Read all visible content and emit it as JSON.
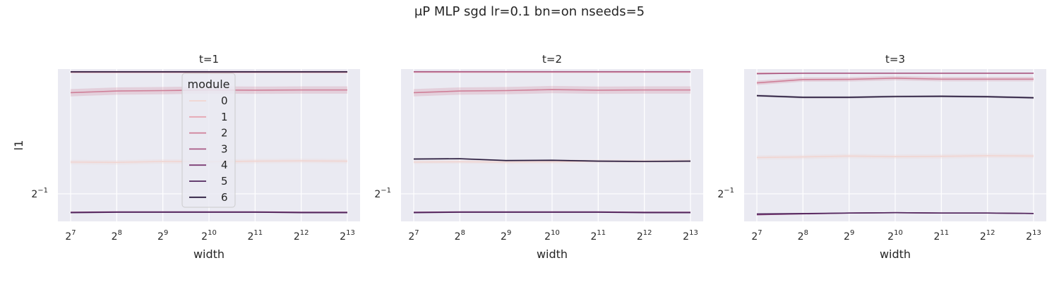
{
  "figure": {
    "suptitle": "μP MLP sgd lr=0.1 bn=on nseeds=5"
  },
  "chart_data": {
    "type": "line",
    "xlabel": "width",
    "ylabel": "l1",
    "x_scale": "log2",
    "y_scale": "log2",
    "x": [
      128,
      256,
      512,
      1024,
      2048,
      4096,
      8192
    ],
    "x_tick_labels": [
      {
        "base": "2",
        "exp": "7"
      },
      {
        "base": "2",
        "exp": "8"
      },
      {
        "base": "2",
        "exp": "9"
      },
      {
        "base": "2",
        "exp": "10"
      },
      {
        "base": "2",
        "exp": "11"
      },
      {
        "base": "2",
        "exp": "12"
      },
      {
        "base": "2",
        "exp": "13"
      }
    ],
    "y_tick_labels": [
      {
        "base": "2",
        "exp": "−1",
        "value": 0.5
      }
    ],
    "ylim": [
      0.43,
      0.99
    ],
    "grid": true,
    "legend": {
      "title": "module",
      "placement": "upper-left (first panel)",
      "entries": [
        "0",
        "1",
        "2",
        "3",
        "4",
        "5",
        "6"
      ],
      "colors": [
        "#f1d5d1",
        "#e6a6b1",
        "#cf7f98",
        "#a95a85",
        "#7d3d74",
        "#52275e",
        "#2a1b3d"
      ]
    },
    "panels": [
      {
        "title": "t=1",
        "series": [
          {
            "name": "0",
            "values": [
              0.595,
              0.594,
              0.597,
              0.596,
              0.598,
              0.599,
              0.598
            ],
            "band": 0.012
          },
          {
            "name": "1",
            "values": [
              0.972,
              0.972,
              0.972,
              0.972,
              0.972,
              0.972,
              0.972
            ],
            "band": 0.002
          },
          {
            "name": "2",
            "values": [
              0.87,
              0.878,
              0.88,
              0.883,
              0.882,
              0.883,
              0.883
            ],
            "band": 0.02
          },
          {
            "name": "3",
            "values": [
              0.976,
              0.976,
              0.976,
              0.976,
              0.976,
              0.976,
              0.976
            ],
            "band": 0.002
          },
          {
            "name": "4",
            "values": [
              0.452,
              0.453,
              0.453,
              0.453,
              0.453,
              0.452,
              0.452
            ],
            "band": 0.002
          },
          {
            "name": "5",
            "values": [
              0.451,
              0.452,
              0.452,
              0.452,
              0.452,
              0.451,
              0.451
            ],
            "band": 0.002
          },
          {
            "name": "6",
            "values": [
              0.975,
              0.975,
              0.975,
              0.975,
              0.975,
              0.975,
              0.975
            ],
            "band": 0.002
          }
        ]
      },
      {
        "title": "t=2",
        "series": [
          {
            "name": "0",
            "values": [
              0.595,
              0.596,
              0.595,
              0.596,
              0.598,
              0.598,
              0.599
            ],
            "band": 0.01
          },
          {
            "name": "1",
            "values": [
              0.973,
              0.973,
              0.973,
              0.973,
              0.973,
              0.973,
              0.973
            ],
            "band": 0.002
          },
          {
            "name": "2",
            "values": [
              0.87,
              0.878,
              0.88,
              0.885,
              0.882,
              0.883,
              0.883
            ],
            "band": 0.02
          },
          {
            "name": "3",
            "values": [
              0.976,
              0.976,
              0.976,
              0.976,
              0.976,
              0.976,
              0.976
            ],
            "band": 0.002
          },
          {
            "name": "4",
            "values": [
              0.452,
              0.453,
              0.453,
              0.453,
              0.453,
              0.452,
              0.452
            ],
            "band": 0.002
          },
          {
            "name": "5",
            "values": [
              0.451,
              0.452,
              0.452,
              0.452,
              0.452,
              0.451,
              0.451
            ],
            "band": 0.002
          },
          {
            "name": "6",
            "values": [
              0.605,
              0.606,
              0.6,
              0.601,
              0.598,
              0.597,
              0.598
            ],
            "band": 0.004
          }
        ]
      },
      {
        "title": "t=3",
        "series": [
          {
            "name": "0",
            "values": [
              0.61,
              0.612,
              0.615,
              0.613,
              0.614,
              0.616,
              0.615
            ],
            "band": 0.012
          },
          {
            "name": "1",
            "values": [
              0.968,
              0.968,
              0.968,
              0.968,
              0.968,
              0.968,
              0.968
            ],
            "band": 0.002
          },
          {
            "name": "2",
            "values": [
              0.918,
              0.935,
              0.936,
              0.942,
              0.937,
              0.937,
              0.937
            ],
            "band": 0.012
          },
          {
            "name": "3",
            "values": [
              0.965,
              0.968,
              0.968,
              0.968,
              0.968,
              0.968,
              0.968
            ],
            "band": 0.003
          },
          {
            "name": "4",
            "values": [
              0.446,
              0.448,
              0.45,
              0.451,
              0.45,
              0.45,
              0.449
            ],
            "band": 0.003
          },
          {
            "name": "5",
            "values": [
              0.448,
              0.449,
              0.45,
              0.451,
              0.45,
              0.45,
              0.449
            ],
            "band": 0.002
          },
          {
            "name": "6",
            "values": [
              0.856,
              0.848,
              0.848,
              0.852,
              0.853,
              0.851,
              0.846
            ],
            "band": 0.006
          }
        ]
      }
    ]
  }
}
